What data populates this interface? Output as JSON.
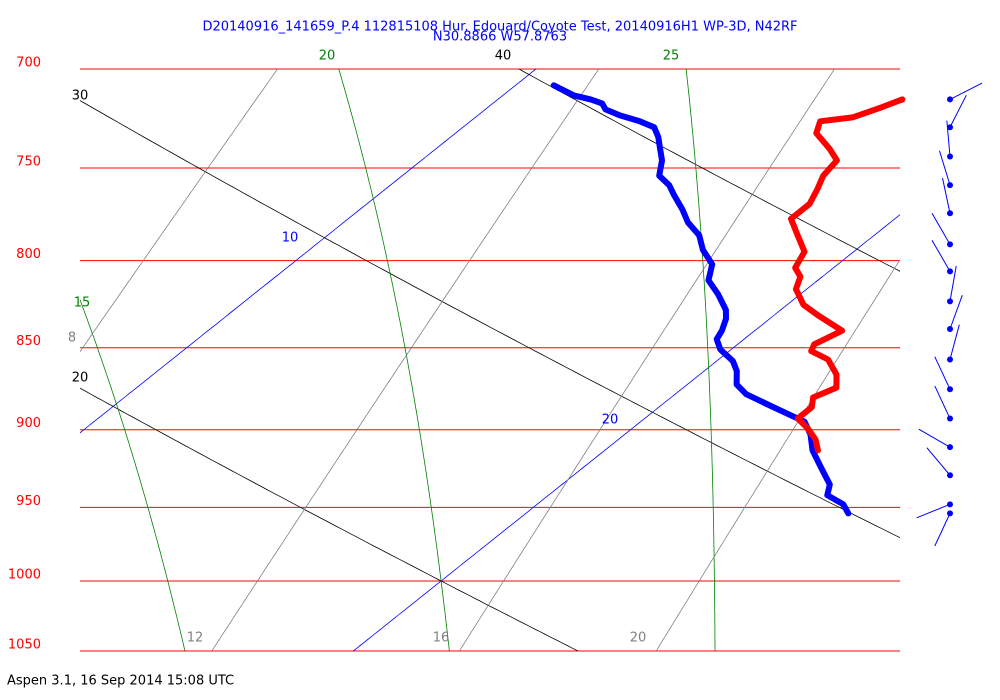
{
  "chart_data": {
    "type": "skewt",
    "title": "D20140916_141659_P.4 112815108 Hur. Edouard/Coyote Test, 20140916H1 WP-3D, N42RF",
    "subtitle": "N30.8866 W57.8763",
    "footer": "Aspen 3.1, 16 Sep 2014  15:08 UTC",
    "ylim": [
      700,
      1050
    ],
    "yticks": [
      700,
      750,
      800,
      850,
      900,
      950,
      1000,
      1050
    ],
    "log_y": true,
    "grid": true,
    "grid_color": "#ff0000",
    "xlim": [
      15,
      30
    ],
    "isotherms": {
      "color": "#0000ff",
      "values": [
        10,
        20
      ]
    },
    "dry_adiabats": {
      "color": "#000000",
      "values": [
        20,
        30,
        40
      ]
    },
    "moist_adiabats": {
      "color": "#008000",
      "values": [
        15,
        20,
        25
      ]
    },
    "mixing_ratios": {
      "color": "#808080",
      "values": [
        8,
        12,
        16,
        20
      ]
    },
    "series": [
      {
        "color": "#0000ff",
        "pressure": [
          708,
          713,
          715,
          717,
          720,
          723,
          726,
          729,
          734,
          740,
          746,
          754,
          759,
          764,
          772,
          779,
          786,
          794,
          802,
          811,
          819,
          828,
          833,
          840,
          845,
          851,
          858,
          864,
          872,
          878,
          884,
          890,
          895,
          903,
          913,
          925,
          935,
          942,
          948,
          954
        ],
        "values": [
          10.7,
          11.3,
          11.7,
          12.0,
          12.2,
          12.6,
          13.1,
          13.5,
          13.8,
          14.1,
          14.4,
          14.7,
          15.1,
          15.4,
          15.9,
          16.3,
          16.8,
          17.2,
          17.7,
          18.0,
          18.5,
          19.0,
          19.2,
          19.4,
          19.5,
          19.8,
          20.3,
          20.6,
          20.9,
          21.3,
          21.9,
          22.5,
          23.0,
          23.4,
          23.8,
          24.4,
          24.9,
          25.1,
          25.6,
          25.9
        ]
      },
      {
        "color": "#ff0000",
        "pressure": [
          715,
          719,
          724,
          726,
          732,
          740,
          746,
          754,
          761,
          769,
          777,
          786,
          795,
          804,
          809,
          816,
          825,
          831,
          840,
          848,
          852,
          857,
          866,
          874,
          880,
          886,
          893,
          899,
          906,
          913
        ],
        "values": [
          17.4,
          17.2,
          16.9,
          16.4,
          16.6,
          17.2,
          17.6,
          17.7,
          17.9,
          18.1,
          18.1,
          18.6,
          19.1,
          19.3,
          19.6,
          19.8,
          20.3,
          20.8,
          21.6,
          21.4,
          21.5,
          22.0,
          22.5,
          22.8,
          22.6,
          22.8,
          22.8,
          23.2,
          23.6,
          23.9
        ]
      }
    ],
    "wind": {
      "color": "#0000ff",
      "pressure": [
        715,
        729,
        744,
        759,
        774,
        791,
        806,
        823,
        839,
        857,
        875,
        893,
        911,
        929,
        948,
        954
      ],
      "direction": [
        63,
        27,
        355,
        343,
        348,
        330,
        330,
        10,
        20,
        15,
        335,
        335,
        300,
        320,
        248,
        205
      ]
    }
  }
}
